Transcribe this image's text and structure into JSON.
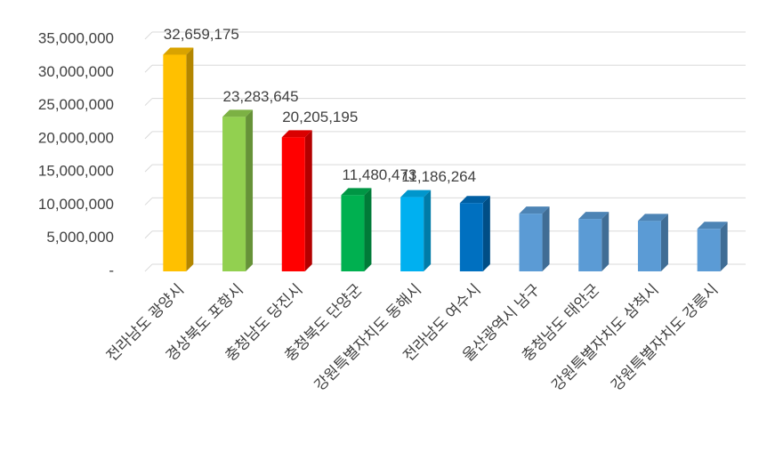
{
  "chart_data": {
    "type": "bar",
    "categories": [
      "전라남도 광양시",
      "경상북도 포항시",
      "충청남도 당진시",
      "충청북도 단양군",
      "강원특별자치도 동해시",
      "전라남도 여수시",
      "울산광역시 남구",
      "충청남도 태안군",
      "강원특별자치도 삼척시",
      "강원특별자치도 강릉시"
    ],
    "values": [
      32659175,
      23283645,
      20205195,
      11480473,
      11186264,
      10300000,
      8700000,
      7900000,
      7600000,
      6400000
    ],
    "value_labels": [
      "32,659,175",
      "23,283,645",
      "20,205,195",
      "11,480,473",
      "11,186,264",
      null,
      null,
      null,
      null,
      null
    ],
    "colors": [
      "#ffc000",
      "#92d050",
      "#ff0000",
      "#00b050",
      "#00b0f0",
      "#0070c0",
      "#5b9bd5",
      "#5b9bd5",
      "#5b9bd5",
      "#5b9bd5"
    ],
    "ylim": [
      0,
      35000000
    ],
    "yticks": [
      {
        "value": 0,
        "label": "-"
      },
      {
        "value": 5000000,
        "label": "5,000,000"
      },
      {
        "value": 10000000,
        "label": "10,000,000"
      },
      {
        "value": 15000000,
        "label": "15,000,000"
      },
      {
        "value": 20000000,
        "label": "20,000,000"
      },
      {
        "value": 25000000,
        "label": "25,000,000"
      },
      {
        "value": 30000000,
        "label": "30,000,000"
      },
      {
        "value": 35000000,
        "label": "35,000,000"
      }
    ],
    "grid": true
  }
}
